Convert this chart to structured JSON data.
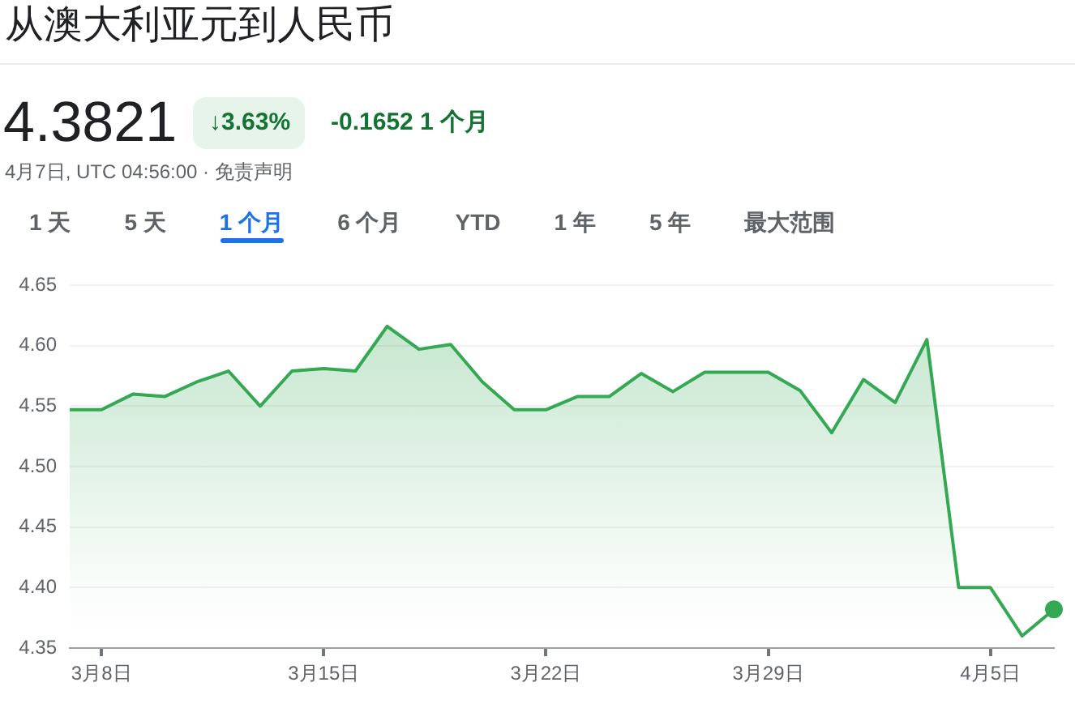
{
  "chart_data": {
    "type": "area",
    "title": "从澳大利亚元到人民币",
    "annotations": [
      "4.3821",
      "↓3.63%",
      "-0.1652 1 个月",
      "4月7日, UTC 04:56:00 · 免责声明",
      "1 天",
      "5 天",
      "1 个月",
      "6 个月",
      "YTD",
      "1 年",
      "5 年",
      "最大范围"
    ],
    "series": [
      {
        "color": "#34a853",
        "x": [
          "--03-07",
          "--03-08",
          "--03-09",
          "--03-10",
          "--03-11",
          "--03-12",
          "--03-13",
          "--03-14",
          "--03-15",
          "--03-16",
          "--03-17",
          "--03-18",
          "--03-19",
          "--03-20",
          "--03-21",
          "--03-22",
          "--03-23",
          "--03-24",
          "--03-25",
          "--03-26",
          "--03-27",
          "--03-28",
          "--03-29",
          "--03-30",
          "--03-31",
          "--04-01",
          "--04-02",
          "--04-03",
          "--04-04",
          "--04-05",
          "--04-06",
          "--04-07"
        ],
        "values": [
          4.547,
          4.547,
          4.56,
          4.558,
          4.57,
          4.579,
          4.55,
          4.579,
          4.581,
          4.579,
          4.616,
          4.597,
          4.601,
          4.57,
          4.547,
          4.547,
          4.558,
          4.558,
          4.577,
          4.562,
          4.578,
          4.578,
          4.578,
          4.563,
          4.528,
          4.572,
          4.553,
          4.605,
          4.4,
          4.4,
          4.36,
          4.382
        ]
      },
      {
        "type": "scatter",
        "color": "#34a853",
        "marker": "circle",
        "x": [
          "--04-07"
        ],
        "values": [
          4.382
        ]
      }
    ],
    "xlim": [
      "--03-07",
      "--04-07"
    ],
    "xticks": [
      {
        "value": "--03-08",
        "label": "3月8日"
      },
      {
        "value": "--03-15",
        "label": "3月15日"
      },
      {
        "value": "--03-22",
        "label": "3月22日"
      },
      {
        "value": "--03-29",
        "label": "3月29日"
      },
      {
        "value": "--04-05",
        "label": "4月5日"
      }
    ],
    "ylim": [
      4.35,
      4.65
    ],
    "yticks": [
      4.35,
      {
        "value": 4.4,
        "label": "4.40"
      },
      4.45,
      {
        "value": 4.5,
        "label": "4.50"
      },
      4.55,
      {
        "value": 4.6,
        "label": "4.60"
      },
      4.65
    ],
    "grid": "y",
    "legend": false
  }
}
